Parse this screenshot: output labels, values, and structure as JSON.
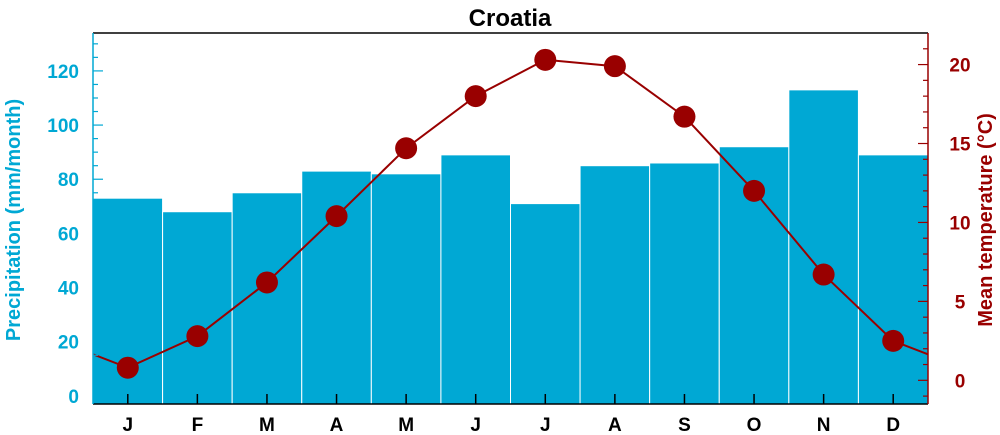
{
  "chart_data": {
    "type": "bar+line",
    "title": "Croatia",
    "categories": [
      "J",
      "F",
      "M",
      "A",
      "M",
      "J",
      "J",
      "A",
      "S",
      "O",
      "N",
      "D"
    ],
    "precipitation": {
      "label": "Precipitation (mm/month)",
      "values": [
        73,
        68,
        75,
        83,
        82,
        89,
        71,
        85,
        86,
        92,
        113,
        89
      ],
      "ylim": [
        -3,
        134
      ],
      "ticks": [
        0,
        20,
        40,
        60,
        80,
        100,
        120
      ],
      "color": "#00A8D4"
    },
    "temperature": {
      "label": "Mean temperature (°C)",
      "values": [
        0.8,
        2.8,
        6.2,
        10.4,
        14.7,
        18.0,
        20.3,
        19.9,
        16.7,
        12.0,
        6.7,
        2.5
      ],
      "ylim": [
        -1.5,
        22
      ],
      "ticks": [
        0,
        5,
        10,
        15,
        20
      ],
      "color": "#990000"
    },
    "grid": false
  }
}
